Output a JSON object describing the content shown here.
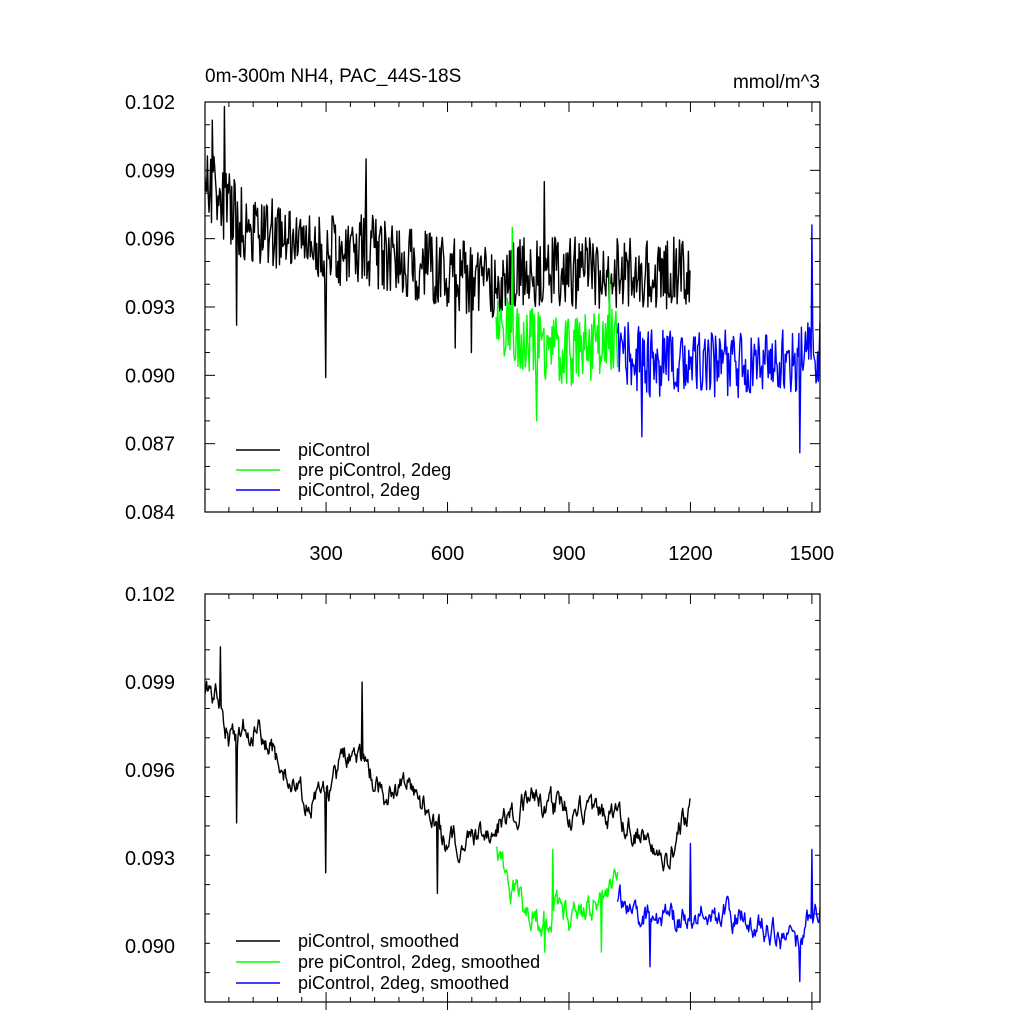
{
  "chart_data": [
    {
      "type": "line",
      "title": "0m-300m NH4, PAC_44S-18S",
      "units": "mmol/m^3",
      "xlabel": "",
      "ylabel": "",
      "xlim": [
        1,
        1520
      ],
      "ylim": [
        0.084,
        0.102
      ],
      "x_ticks": [
        300,
        600,
        900,
        1200,
        1500
      ],
      "x_tick_labels": [
        "300",
        "600",
        "900",
        "1200",
        "1500"
      ],
      "y_ticks": [
        0.084,
        0.087,
        0.09,
        0.093,
        0.096,
        0.099,
        0.102
      ],
      "y_tick_labels": [
        "0.084",
        "0.087",
        "0.090",
        "0.093",
        "0.096",
        "0.099",
        "0.102"
      ],
      "grid": false,
      "legend_position": "bottom-left",
      "series": [
        {
          "name": "piControl",
          "color": "#000000",
          "x_range": [
            1,
            1200
          ],
          "anchors": [
            [
              1,
              0.0985
            ],
            [
              50,
              0.0975
            ],
            [
              100,
              0.0965
            ],
            [
              200,
              0.096
            ],
            [
              300,
              0.0955
            ],
            [
              400,
              0.0955
            ],
            [
              500,
              0.095
            ],
            [
              600,
              0.0945
            ],
            [
              700,
              0.094
            ],
            [
              800,
              0.0945
            ],
            [
              900,
              0.0945
            ],
            [
              1000,
              0.0945
            ],
            [
              1100,
              0.0945
            ],
            [
              1200,
              0.0945
            ]
          ],
          "noise_amplitude": 0.0016,
          "peaks": [
            [
              20,
              0.1012
            ],
            [
              50,
              0.1018
            ],
            [
              400,
              0.0995
            ],
            [
              840,
              0.0985
            ]
          ],
          "dips": [
            [
              80,
              0.0922
            ],
            [
              300,
              0.0899
            ],
            [
              620,
              0.0912
            ],
            [
              660,
              0.091
            ]
          ]
        },
        {
          "name": "pre piControl, 2deg",
          "color": "#00ff00",
          "x_range": [
            720,
            1020
          ],
          "anchors": [
            [
              720,
              0.0925
            ],
            [
              800,
              0.0915
            ],
            [
              900,
              0.091
            ],
            [
              1020,
              0.0915
            ]
          ],
          "noise_amplitude": 0.0015,
          "peaks": [
            [
              760,
              0.0965
            ],
            [
              1000,
              0.0945
            ]
          ],
          "dips": [
            [
              820,
              0.088
            ]
          ]
        },
        {
          "name": "piControl, 2deg",
          "color": "#0000ff",
          "x_range": [
            1020,
            1520
          ],
          "anchors": [
            [
              1020,
              0.091
            ],
            [
              1100,
              0.0905
            ],
            [
              1200,
              0.0905
            ],
            [
              1300,
              0.0905
            ],
            [
              1400,
              0.0905
            ],
            [
              1520,
              0.091
            ]
          ],
          "noise_amplitude": 0.0015,
          "peaks": [
            [
              1500,
              0.0966
            ]
          ],
          "dips": [
            [
              1080,
              0.0873
            ],
            [
              1470,
              0.0866
            ]
          ]
        }
      ]
    },
    {
      "type": "line",
      "title": "",
      "units": "",
      "xlabel": "",
      "ylabel": "",
      "xlim": [
        1,
        1520
      ],
      "ylim": [
        0.0881,
        0.102
      ],
      "x_ticks": [
        300,
        600,
        900,
        1200,
        1500
      ],
      "x_tick_labels": [],
      "y_ticks": [
        0.09,
        0.093,
        0.096,
        0.099,
        0.102
      ],
      "y_tick_labels": [
        "0.090",
        "0.093",
        "0.096",
        "0.099",
        "0.102"
      ],
      "grid": false,
      "legend_position": "bottom-left",
      "series": [
        {
          "name": "piControl, smoothed",
          "color": "#000000",
          "x_range": [
            1,
            1200
          ],
          "anchors": [
            [
              1,
              0.0988
            ],
            [
              40,
              0.0985
            ],
            [
              60,
              0.097
            ],
            [
              100,
              0.0975
            ],
            [
              150,
              0.097
            ],
            [
              200,
              0.096
            ],
            [
              250,
              0.095
            ],
            [
              300,
              0.095
            ],
            [
              350,
              0.0965
            ],
            [
              400,
              0.096
            ],
            [
              450,
              0.095
            ],
            [
              500,
              0.0955
            ],
            [
              550,
              0.0945
            ],
            [
              600,
              0.0935
            ],
            [
              700,
              0.094
            ],
            [
              800,
              0.095
            ],
            [
              900,
              0.0945
            ],
            [
              1000,
              0.0945
            ],
            [
              1100,
              0.0935
            ],
            [
              1150,
              0.093
            ],
            [
              1200,
              0.095
            ]
          ],
          "noise_amplitude": 0.0006,
          "peaks": [
            [
              40,
              0.1002
            ],
            [
              390,
              0.099
            ]
          ],
          "dips": [
            [
              80,
              0.0942
            ],
            [
              300,
              0.0925
            ],
            [
              575,
              0.0918
            ]
          ]
        },
        {
          "name": "pre piControl, 2deg, smoothed",
          "color": "#00ff00",
          "x_range": [
            720,
            1020
          ],
          "anchors": [
            [
              720,
              0.093
            ],
            [
              780,
              0.0915
            ],
            [
              840,
              0.091
            ],
            [
              900,
              0.091
            ],
            [
              960,
              0.0915
            ],
            [
              1020,
              0.092
            ]
          ],
          "noise_amplitude": 0.0007,
          "peaks": [
            [
              860,
              0.0933
            ]
          ],
          "dips": [
            [
              840,
              0.0898
            ],
            [
              980,
              0.0898
            ]
          ]
        },
        {
          "name": "piControl, 2deg, smoothed",
          "color": "#0000ff",
          "x_range": [
            1020,
            1520
          ],
          "anchors": [
            [
              1020,
              0.0915
            ],
            [
              1100,
              0.091
            ],
            [
              1200,
              0.091
            ],
            [
              1300,
              0.091
            ],
            [
              1400,
              0.0905
            ],
            [
              1460,
              0.09
            ],
            [
              1520,
              0.0915
            ]
          ],
          "noise_amplitude": 0.0006,
          "peaks": [
            [
              1200,
              0.0935
            ],
            [
              1500,
              0.0933
            ]
          ],
          "dips": [
            [
              1100,
              0.0893
            ],
            [
              1470,
              0.0888
            ]
          ]
        }
      ]
    }
  ]
}
